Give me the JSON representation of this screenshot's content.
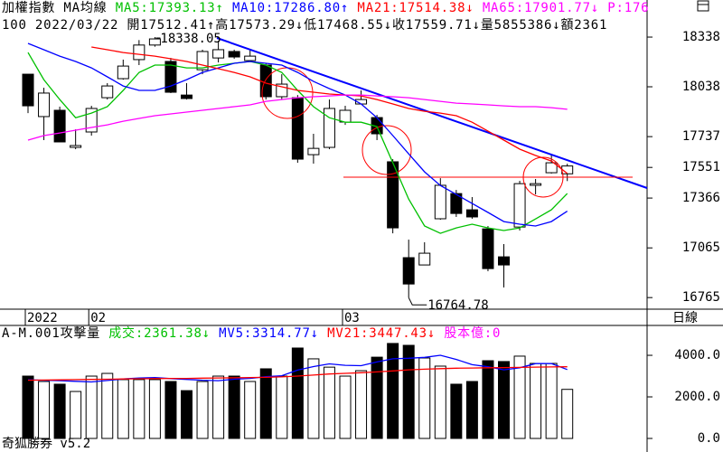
{
  "chart_data": [
    {
      "type": "candlestick",
      "title": "加權指數 MA均線",
      "subtitle": "100 2022/03/22 開17512.41↑高17573.29↓低17468.55↓收17559.71↓量5855386↓額2361",
      "extra_label": "P:176",
      "categories": [
        "2022",
        null,
        null,
        null,
        "02",
        null,
        null,
        null,
        null,
        null,
        null,
        null,
        null,
        null,
        null,
        null,
        null,
        null,
        null,
        null,
        "03",
        null,
        null,
        null,
        null,
        null,
        null,
        null,
        null,
        null,
        null,
        null,
        null,
        null,
        null
      ],
      "open": [
        18114,
        17858,
        17896,
        17672,
        17765,
        17972,
        18087,
        18202,
        18290,
        18191,
        17988,
        18141,
        18212,
        18251,
        18196,
        18169,
        17978,
        17972,
        17628,
        17672,
        17825,
        17934,
        17852,
        17585,
        17006,
        16962,
        17241,
        17393,
        17295,
        17180,
        17011,
        17191,
        17443,
        17519,
        17512.41
      ],
      "high": [
        18114,
        18032,
        17918,
        17781,
        17923,
        18060,
        18202,
        18320,
        18338.05,
        18212,
        18060,
        18262,
        18316,
        18262,
        18262,
        18180,
        18114,
        17988,
        17754,
        17961,
        17923,
        18016,
        17868,
        17601,
        17115,
        17099,
        17486,
        17415,
        17372,
        17197,
        17088,
        17470,
        17481,
        17623,
        17573.29
      ],
      "low": [
        17879,
        17716,
        17705,
        17661,
        17743,
        17961,
        18081,
        18169,
        18280,
        18000,
        17961,
        18114,
        18185,
        18207,
        18191,
        17961,
        17961,
        17579,
        17574,
        17661,
        17808,
        17934,
        17716,
        17153,
        16764.78,
        16962,
        17235,
        17252,
        17241,
        16924,
        16826,
        17170,
        17388,
        17514,
        17468.55
      ],
      "close": [
        17923,
        18000,
        17705,
        17683,
        17907,
        18043,
        18163,
        18290,
        18327,
        18005,
        17967,
        18251,
        18262,
        18218,
        18223,
        17978,
        18054,
        17601,
        17666,
        17907,
        17896,
        17961,
        17754,
        17186,
        16847,
        17033,
        17443,
        17273,
        17252,
        16940,
        16962,
        17453,
        17453,
        17579,
        17559.71
      ],
      "series": [
        {
          "name": "MA5:17393.13↑",
          "color": "#00c000",
          "values": [
            18245,
            18081,
            17961,
            17851,
            17879,
            17918,
            18016,
            18125,
            18169,
            18169,
            18152,
            18152,
            18169,
            18180,
            18191,
            18169,
            18125,
            18016,
            17918,
            17851,
            17824,
            17824,
            17797,
            17579,
            17360,
            17197,
            17153,
            17186,
            17208,
            17186,
            17170,
            17186,
            17240,
            17295,
            17393.13
          ]
        },
        {
          "name": "MA10:17286.80↑",
          "color": "#0000ff",
          "values": [
            18300,
            18262,
            18223,
            18191,
            18152,
            18098,
            18043,
            18016,
            18016,
            18043,
            18081,
            18125,
            18152,
            18180,
            18191,
            18180,
            18169,
            18125,
            18070,
            18027,
            17988,
            17934,
            17851,
            17743,
            17633,
            17524,
            17442,
            17388,
            17333,
            17279,
            17224,
            17208,
            17197,
            17224,
            17286.8
          ]
        },
        {
          "name": "MA21:17514.38↓",
          "color": "#ff0000",
          "values": [
            null,
            null,
            null,
            null,
            18278,
            18262,
            18245,
            18234,
            18223,
            18207,
            18191,
            18169,
            18147,
            18125,
            18098,
            18060,
            18038,
            18016,
            18005,
            17994,
            17988,
            17983,
            17961,
            17934,
            17907,
            17890,
            17879,
            17863,
            17824,
            17770,
            17716,
            17661,
            17623,
            17590,
            17514.38
          ]
        },
        {
          "name": "MA65:17901.77↓",
          "color": "#ff00ff",
          "values": [
            17716,
            17743,
            17759,
            17776,
            17792,
            17808,
            17830,
            17847,
            17863,
            17874,
            17885,
            17896,
            17907,
            17918,
            17929,
            17950,
            17961,
            17972,
            17978,
            17983,
            17988,
            17988,
            17983,
            17978,
            17972,
            17961,
            17950,
            17939,
            17934,
            17929,
            17923,
            17918,
            17918,
            17912,
            17901.77
          ]
        }
      ],
      "ylim": [
        16695,
        18562
      ],
      "yticks": [
        16765,
        17065,
        17366,
        17551,
        17737,
        18038,
        18338
      ],
      "period_label": "日線"
    },
    {
      "type": "volume",
      "title": "A-M.001攻擊量",
      "extra_label": "股本億:0",
      "values": [
        3000,
        2740,
        2610,
        2260,
        3000,
        3130,
        2830,
        2830,
        2830,
        2740,
        2300,
        2740,
        3000,
        3000,
        2740,
        3350,
        3000,
        4350,
        3830,
        3430,
        3000,
        3260,
        3910,
        4570,
        4480,
        3870,
        3480,
        2610,
        2740,
        3740,
        3700,
        3960,
        3610,
        3610,
        2361.38
      ],
      "name": "成交:2361.38↓",
      "color": "#00c000",
      "series": [
        {
          "name": "MV5:3314.77↓",
          "color": "#0000ff",
          "values": [
            2820,
            2800,
            2780,
            2750,
            2720,
            2790,
            2860,
            2910,
            2930,
            2880,
            2840,
            2800,
            2780,
            2850,
            2890,
            2970,
            3020,
            3290,
            3460,
            3590,
            3520,
            3500,
            3680,
            3830,
            3860,
            3900,
            4000,
            3800,
            3550,
            3450,
            3300,
            3400,
            3600,
            3600,
            3314.77
          ]
        },
        {
          "name": "MV21:3447.43↓",
          "color": "#ff0000",
          "values": [
            2800,
            2810,
            2820,
            2830,
            2840,
            2850,
            2860,
            2870,
            2880,
            2890,
            2890,
            2900,
            2910,
            2920,
            2930,
            2940,
            2960,
            3000,
            3050,
            3100,
            3130,
            3160,
            3200,
            3250,
            3300,
            3330,
            3360,
            3380,
            3390,
            3400,
            3410,
            3420,
            3430,
            3440,
            3447.43
          ]
        }
      ],
      "ylim": [
        0,
        5350
      ],
      "yticks": [
        {
          "value": 0,
          "label": "0.0"
        },
        {
          "value": 2000,
          "label": "2000.0"
        },
        {
          "value": 4000,
          "label": "4000.0"
        }
      ],
      "footer": "奇狐勝券 v5.2"
    }
  ]
}
